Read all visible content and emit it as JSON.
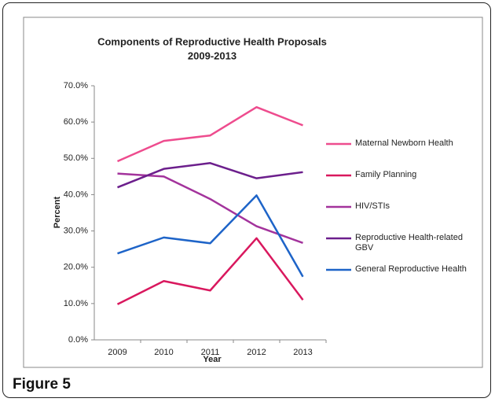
{
  "caption": "Figure 5",
  "chart_data": {
    "type": "line",
    "title": "Components of Reproductive Health Proposals",
    "subtitle": "2009-2013",
    "x_label": "Year",
    "y_label": "Percent",
    "categories": [
      "2009",
      "2010",
      "2011",
      "2012",
      "2013"
    ],
    "series": [
      {
        "name": "Maternal Newborn Health",
        "color": "#ee4c8e",
        "values": [
          49.2,
          54.8,
          56.3,
          64.1,
          59.1
        ]
      },
      {
        "name": "Family Planning",
        "color": "#d9185e",
        "values": [
          9.8,
          16.2,
          13.6,
          28.0,
          11.0
        ]
      },
      {
        "name": "HIV/STIs",
        "color": "#a3339c",
        "values": [
          45.8,
          45.0,
          38.8,
          31.3,
          26.7
        ]
      },
      {
        "name": "Reproductive Health-related GBV",
        "color": "#6c1f8c",
        "values": [
          42.0,
          47.1,
          48.7,
          44.5,
          46.2
        ]
      },
      {
        "name": "General Reproductive Health",
        "color": "#1e64c8",
        "values": [
          23.8,
          28.2,
          26.6,
          39.8,
          17.4
        ]
      }
    ],
    "ylim": [
      0,
      70
    ],
    "yticks": [
      {
        "value": 0,
        "label": "0.0%"
      },
      {
        "value": 10,
        "label": "10.0%"
      },
      {
        "value": 20,
        "label": "20.0%"
      },
      {
        "value": 30,
        "label": "30.0%"
      },
      {
        "value": 40,
        "label": "40.0%"
      },
      {
        "value": 50,
        "label": "50.0%"
      },
      {
        "value": 60,
        "label": "60.0%"
      },
      {
        "value": 70,
        "label": "70.0%"
      }
    ],
    "grid": false,
    "legend": "right"
  }
}
